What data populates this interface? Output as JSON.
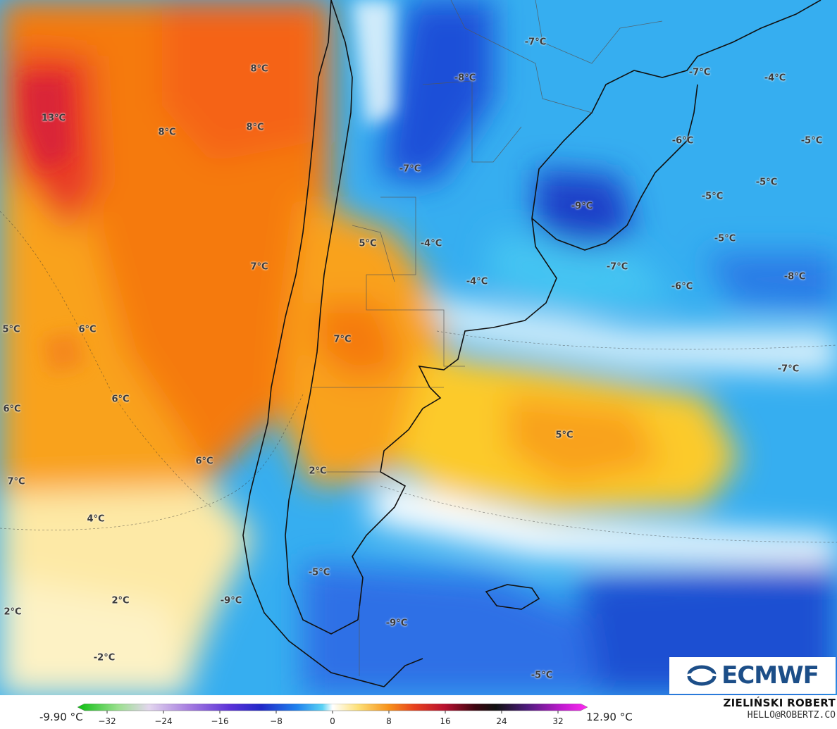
{
  "labels": [
    {
      "text": "8°C"
    },
    {
      "text": "13°C"
    },
    {
      "text": "8°C"
    },
    {
      "text": "8°C"
    },
    {
      "text": "7°C"
    },
    {
      "text": "6°C"
    },
    {
      "text": "5°C"
    },
    {
      "text": "6°C"
    },
    {
      "text": "6°C"
    },
    {
      "text": "6°C"
    },
    {
      "text": "7°C"
    },
    {
      "text": "4°C"
    },
    {
      "text": "2°C"
    },
    {
      "text": "2°C"
    },
    {
      "text": "-2°C"
    },
    {
      "text": "5°C"
    },
    {
      "text": "7°C"
    },
    {
      "text": "2°C"
    },
    {
      "text": "5°C"
    },
    {
      "text": "-7°C"
    },
    {
      "text": "-8°C"
    },
    {
      "text": "-7°C"
    },
    {
      "text": "-7°C"
    },
    {
      "text": "-4°C"
    },
    {
      "text": "-6°C"
    },
    {
      "text": "-5°C"
    },
    {
      "text": "-5°C"
    },
    {
      "text": "-9°C"
    },
    {
      "text": "-5°C"
    },
    {
      "text": "-5°C"
    },
    {
      "text": "-4°C"
    },
    {
      "text": "-7°C"
    },
    {
      "text": "-6°C"
    },
    {
      "text": "-8°C"
    },
    {
      "text": "-4°C"
    },
    {
      "text": "-7°C"
    },
    {
      "text": "-5°C"
    },
    {
      "text": "-9°C"
    },
    {
      "text": "-9°C"
    },
    {
      "text": "-5°C"
    }
  ],
  "logo": {
    "text": "ECMWF"
  },
  "colorbar": {
    "min_label": "-9.90 °C",
    "max_label": "12.90 °C",
    "ticks": [
      "−32",
      "−24",
      "−16",
      "−8",
      "0",
      "8",
      "16",
      "24",
      "32"
    ]
  },
  "credit": {
    "name": "ZIELIŃSKI ROBERT",
    "email": "HELLO@ROBERTZ.CO"
  }
}
